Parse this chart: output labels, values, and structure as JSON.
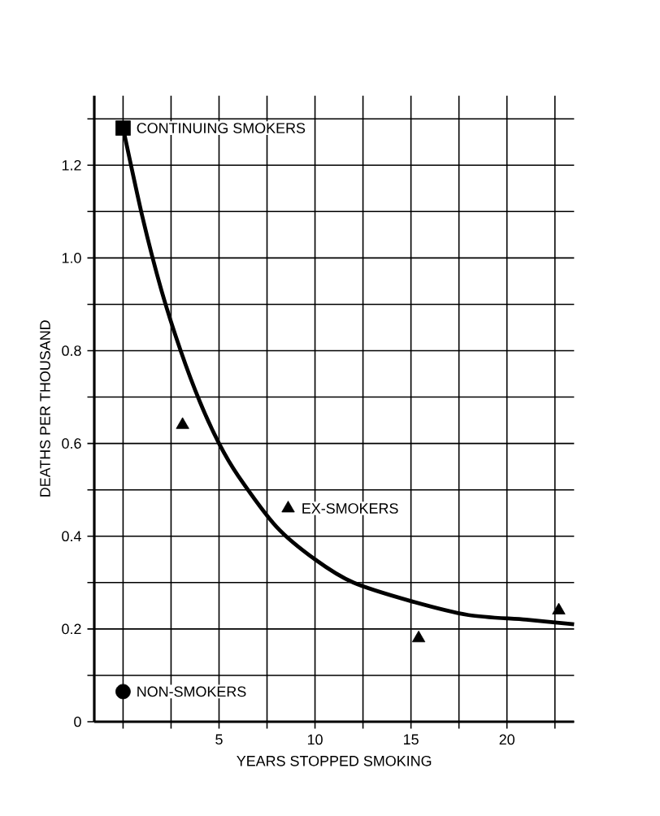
{
  "chart_data": {
    "type": "scatter",
    "xlabel": "YEARS STOPPED SMOKING",
    "ylabel": "DEATHS PER THOUSAND",
    "series": [
      {
        "type": "line",
        "color": "#000000",
        "marker": "none",
        "x": [
          0,
          1,
          2,
          3,
          4,
          5,
          6,
          8,
          10,
          12,
          15,
          18,
          21,
          23.5
        ],
        "values": [
          1.28,
          1.09,
          0.93,
          0.8,
          0.69,
          0.6,
          0.53,
          0.42,
          0.35,
          0.3,
          0.26,
          0.23,
          0.22,
          0.21
        ]
      },
      {
        "name": "CONTINUING SMOKERS",
        "color": "#000000",
        "marker": "square",
        "x": [
          0
        ],
        "values": [
          1.28
        ]
      },
      {
        "name": "EX-SMOKERS",
        "color": "#000000",
        "marker": "triangle",
        "x": [
          3.1,
          8.6,
          15.4,
          22.7
        ],
        "values": [
          0.64,
          0.46,
          0.18,
          0.24
        ]
      },
      {
        "name": "NON-SMOKERS",
        "color": "#000000",
        "marker": "circle",
        "x": [
          0
        ],
        "values": [
          0.065
        ]
      }
    ],
    "xlim": [
      -1.5,
      23.5
    ],
    "ylim": [
      0,
      1.35
    ],
    "xticks": [
      {
        "value": 0,
        "label": null
      },
      {
        "value": 2.5,
        "label": null
      },
      5,
      {
        "value": 7.5,
        "label": null
      },
      10,
      {
        "value": 12.5,
        "label": null
      },
      15,
      {
        "value": 17.5,
        "label": null
      },
      20,
      {
        "value": 22.5,
        "label": null
      }
    ],
    "yticks": [
      0,
      {
        "value": 0.1,
        "label": null
      },
      0.2,
      {
        "value": 0.3,
        "label": null
      },
      0.4,
      {
        "value": 0.5,
        "label": null
      },
      0.6,
      {
        "value": 0.7,
        "label": null
      },
      0.8,
      {
        "value": 0.9,
        "label": null
      },
      {
        "value": 1.0,
        "label": "1.0"
      },
      {
        "value": 1.1,
        "label": null
      },
      1.2,
      {
        "value": 1.3,
        "label": null
      }
    ],
    "grid": true,
    "legend": false
  }
}
